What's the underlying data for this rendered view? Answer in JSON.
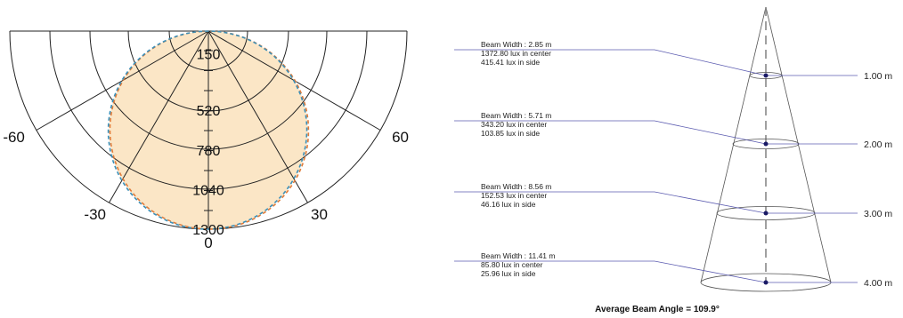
{
  "polar_chart": {
    "angle_labels": [
      {
        "text": "-60",
        "angle": -60
      },
      {
        "text": "-30",
        "angle": -30
      },
      {
        "text": "0",
        "angle": 0
      },
      {
        "text": "30",
        "angle": 30
      },
      {
        "text": "60",
        "angle": 60
      }
    ],
    "radial_labels": [
      {
        "text": "150",
        "value": 150
      },
      {
        "text": "520",
        "value": 520
      },
      {
        "text": "780",
        "value": 780
      },
      {
        "text": "1040",
        "value": 1040
      },
      {
        "text": "1300",
        "value": 1300
      }
    ],
    "radial_max": 1300,
    "spoke_angles": [
      -90,
      -60,
      -30,
      0,
      30,
      60,
      90
    ],
    "colors": {
      "fill": "#fbe6c6",
      "curve_c0": "#e07b39",
      "curve_c90": "#3a8fb8",
      "grid": "#222222"
    }
  },
  "cone": {
    "levels": [
      {
        "beam_width": "Beam Width : 2.85 m",
        "center": "1372.80 lux in center",
        "side": "415.41 lux in side",
        "distance": "1.00 m"
      },
      {
        "beam_width": "Beam Width : 5.71 m",
        "center": "343.20 lux in center",
        "side": "103.85 lux in side",
        "distance": "2.00 m"
      },
      {
        "beam_width": "Beam Width : 8.56 m",
        "center": "152.53 lux in center",
        "side": "46.16 lux in side",
        "distance": "3.00 m"
      },
      {
        "beam_width": "Beam Width : 11.41 m",
        "center": "85.80 lux in center",
        "side": "25.96 lux in side",
        "distance": "4.00 m"
      }
    ],
    "average_beam_angle": "Average Beam Angle = 109.9°",
    "colors": {
      "leader": "#5b5bb0",
      "point": "#1a1a66",
      "outline": "#555555"
    }
  }
}
